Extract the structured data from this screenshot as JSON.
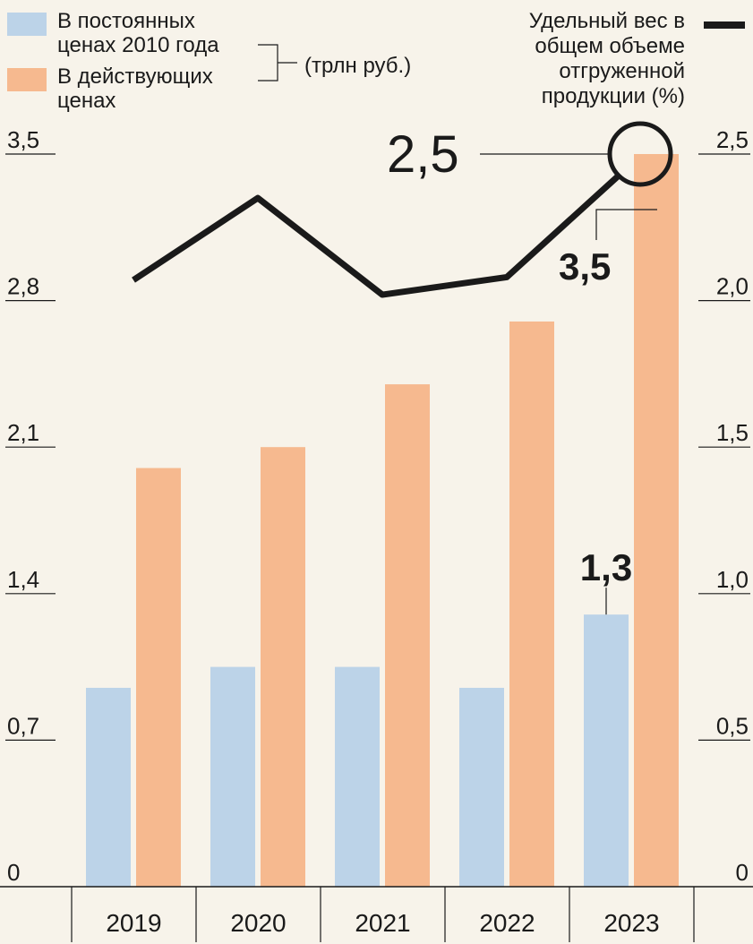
{
  "legend": {
    "constant_prices": "В постоянных ценах 2010 года",
    "current_prices": "В действующих ценах",
    "unit": "(трлн руб.)",
    "share": "Удельный вес в общем объеме отгруженной продукции (%)"
  },
  "chart_data": {
    "type": "bar",
    "categories": [
      "2019",
      "2020",
      "2021",
      "2022",
      "2023"
    ],
    "series": [
      {
        "name": "В постоянных ценах 2010 года",
        "values": [
          0.95,
          1.05,
          1.05,
          0.95,
          1.3
        ],
        "axis": "left",
        "color": "#bcd3e8"
      },
      {
        "name": "В действующих ценах",
        "values": [
          2.0,
          2.1,
          2.4,
          2.7,
          3.5
        ],
        "axis": "left",
        "color": "#f6b98f"
      },
      {
        "name": "Удельный вес в общем объеме отгруженной продукции (%)",
        "type": "line",
        "values": [
          2.07,
          2.35,
          2.02,
          2.08,
          2.5
        ],
        "axis": "right",
        "color": "#1a1a1a"
      }
    ],
    "left_axis": {
      "ticks": [
        "0",
        "0,7",
        "1,4",
        "2,1",
        "2,8",
        "3,5"
      ],
      "values": [
        0,
        0.7,
        1.4,
        2.1,
        2.8,
        3.5
      ],
      "ylim": [
        0,
        3.5
      ]
    },
    "right_axis": {
      "ticks": [
        "0",
        "0,5",
        "1,0",
        "1,5",
        "2,0",
        "2,5"
      ],
      "values": [
        0,
        0.5,
        1.0,
        1.5,
        2.0,
        2.5
      ],
      "ylim": [
        0,
        2.5
      ]
    },
    "annotations": [
      {
        "text": "2,5",
        "target": "line-2023"
      },
      {
        "text": "3,5",
        "target": "current-2023"
      },
      {
        "text": "1,3",
        "target": "constant-2023"
      }
    ]
  }
}
